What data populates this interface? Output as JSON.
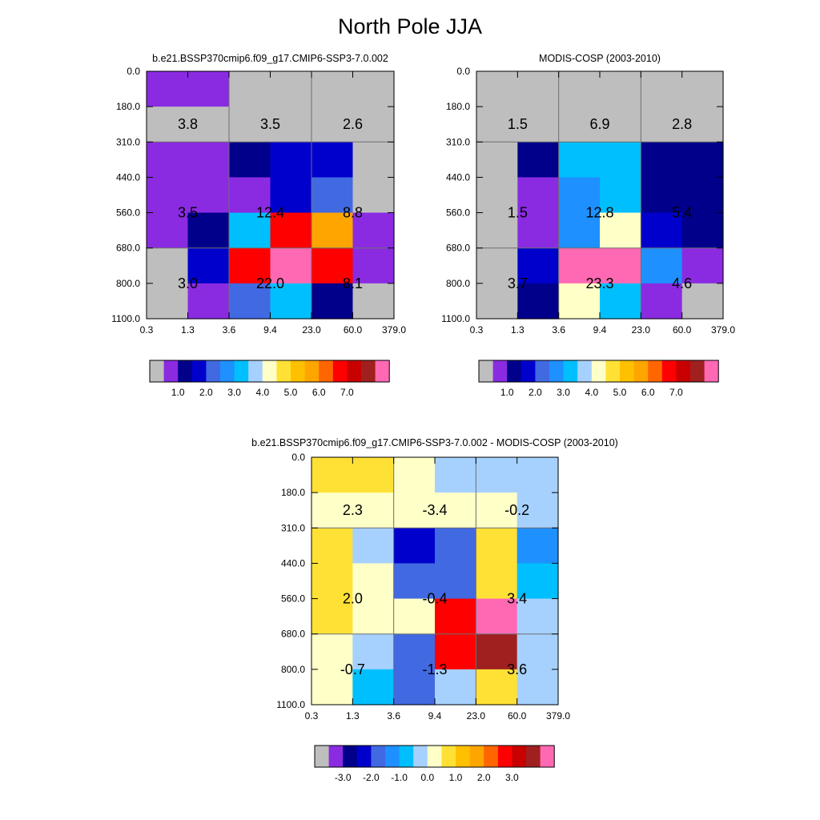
{
  "title": "North Pole JJA",
  "x_ticks": [
    "0.3",
    "1.3",
    "3.6",
    "9.4",
    "23.0",
    "60.0",
    "379.0"
  ],
  "y_ticks": [
    "0.0",
    "180.0",
    "310.0",
    "440.0",
    "560.0",
    "680.0",
    "800.0",
    "1100.0"
  ],
  "palettes": {
    "abs": [
      "#bebebe",
      "#8a2be2",
      "#00008b",
      "#0000cd",
      "#4169e1",
      "#1e90ff",
      "#00bfff",
      "#a6d1ff",
      "#ffffc8",
      "#ffe135",
      "#ffc000",
      "#ffa500",
      "#ff6600",
      "#ff0000",
      "#c80000",
      "#a02020",
      "#ff69b4"
    ],
    "diff": [
      "#bebebe",
      "#8a2be2",
      "#00008b",
      "#0000cd",
      "#4169e1",
      "#1e90ff",
      "#00bfff",
      "#a6d1ff",
      "#ffffc8",
      "#ffe135",
      "#ffc000",
      "#ffa500",
      "#ff6600",
      "#ff0000",
      "#c80000",
      "#a02020",
      "#ff69b4"
    ]
  },
  "chart_data": [
    {
      "type": "heatmap",
      "title": "b.e21.BSSP370cmip6.f09_g17.CMIP6-SSP3-7.0.002",
      "x_ticks": [
        "0.3",
        "1.3",
        "3.6",
        "9.4",
        "23.0",
        "60.0",
        "379.0"
      ],
      "y_ticks": [
        "0.0",
        "180.0",
        "310.0",
        "440.0",
        "560.0",
        "680.0",
        "800.0",
        "1100.0"
      ],
      "cells": [
        [
          1,
          1,
          0,
          0,
          0,
          0
        ],
        [
          0,
          0,
          0,
          0,
          0,
          0
        ],
        [
          1,
          1,
          2,
          3,
          3,
          0
        ],
        [
          1,
          1,
          1,
          3,
          4,
          0
        ],
        [
          1,
          2,
          6,
          13,
          11,
          1
        ],
        [
          0,
          3,
          13,
          16,
          13,
          1
        ],
        [
          0,
          1,
          4,
          6,
          2,
          0
        ]
      ],
      "labels": [
        [
          "3.8",
          "3.5",
          "2.6"
        ],
        [
          "3.5",
          "12.4",
          "8.8"
        ],
        [
          "3.0",
          "22.0",
          "8.1"
        ]
      ],
      "colorbar": {
        "palette": "abs",
        "tick_labels": [
          "1.0",
          "2.0",
          "3.0",
          "4.0",
          "5.0",
          "6.0",
          "7.0"
        ]
      }
    },
    {
      "type": "heatmap",
      "title": "MODIS-COSP (2003-2010)",
      "x_ticks": [
        "0.3",
        "1.3",
        "3.6",
        "9.4",
        "23.0",
        "60.0",
        "379.0"
      ],
      "y_ticks": [
        "0.0",
        "180.0",
        "310.0",
        "440.0",
        "560.0",
        "680.0",
        "800.0",
        "1100.0"
      ],
      "cells": [
        [
          0,
          0,
          0,
          0,
          0,
          0
        ],
        [
          0,
          0,
          0,
          0,
          0,
          0
        ],
        [
          0,
          2,
          6,
          6,
          2,
          2
        ],
        [
          0,
          1,
          5,
          6,
          2,
          2
        ],
        [
          0,
          1,
          5,
          8,
          3,
          2
        ],
        [
          0,
          3,
          16,
          16,
          5,
          1
        ],
        [
          0,
          2,
          8,
          6,
          1,
          0
        ]
      ],
      "labels": [
        [
          "1.5",
          "6.9",
          "2.8"
        ],
        [
          "1.5",
          "12.8",
          "5.4"
        ],
        [
          "3.7",
          "23.3",
          "4.6"
        ]
      ],
      "colorbar": {
        "palette": "abs",
        "tick_labels": [
          "1.0",
          "2.0",
          "3.0",
          "4.0",
          "5.0",
          "6.0",
          "7.0"
        ]
      }
    },
    {
      "type": "heatmap",
      "title": "b.e21.BSSP370cmip6.f09_g17.CMIP6-SSP3-7.0.002 - MODIS-COSP (2003-2010)",
      "x_ticks": [
        "0.3",
        "1.3",
        "3.6",
        "9.4",
        "23.0",
        "60.0",
        "379.0"
      ],
      "y_ticks": [
        "0.0",
        "180.0",
        "310.0",
        "440.0",
        "560.0",
        "680.0",
        "800.0",
        "1100.0"
      ],
      "cells": [
        [
          9,
          9,
          8,
          7,
          7,
          7
        ],
        [
          8,
          8,
          8,
          8,
          8,
          7
        ],
        [
          9,
          7,
          3,
          4,
          9,
          5
        ],
        [
          9,
          8,
          4,
          4,
          9,
          6
        ],
        [
          9,
          8,
          8,
          13,
          16,
          7
        ],
        [
          8,
          7,
          4,
          13,
          15,
          7
        ],
        [
          8,
          6,
          4,
          7,
          9,
          7
        ]
      ],
      "labels": [
        [
          "2.3",
          "-3.4",
          "-0.2"
        ],
        [
          "2.0",
          "-0.4",
          "3.4"
        ],
        [
          "-0.7",
          "-1.3",
          "3.6"
        ]
      ],
      "colorbar": {
        "palette": "diff",
        "tick_labels": [
          "-3.0",
          "-2.0",
          "-1.0",
          "0.0",
          "1.0",
          "2.0",
          "3.0"
        ]
      }
    }
  ]
}
